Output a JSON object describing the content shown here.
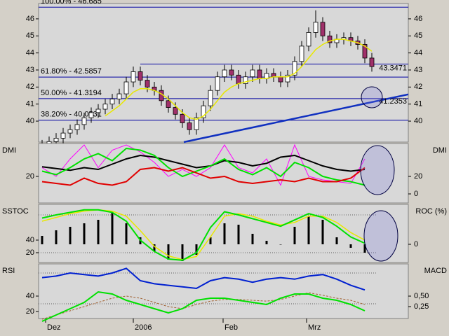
{
  "chart_data": [
    {
      "type": "candlestick",
      "x": [
        0,
        1,
        2,
        3,
        4,
        5,
        6,
        7,
        8,
        9,
        10,
        11,
        12,
        13,
        14,
        15,
        16,
        17,
        18,
        19,
        20,
        21,
        22,
        23,
        24,
        25,
        26,
        27,
        28,
        29,
        30,
        31,
        32,
        33,
        34,
        35,
        36,
        37,
        38,
        39,
        40,
        41,
        42,
        43,
        44,
        45,
        46,
        47
      ],
      "open": [
        38.4,
        38.6,
        38.8,
        39.0,
        39.3,
        39.5,
        39.8,
        40.2,
        40.5,
        40.7,
        41.0,
        41.3,
        41.6,
        42.3,
        42.9,
        42.4,
        42.0,
        41.8,
        41.2,
        40.8,
        40.4,
        39.9,
        39.5,
        40.2,
        40.9,
        41.8,
        42.6,
        43.0,
        42.7,
        42.2,
        42.6,
        43.0,
        42.5,
        42.8,
        42.6,
        42.3,
        42.7,
        43.5,
        44.4,
        45.2,
        45.8,
        45.0,
        44.6,
        44.8,
        44.9,
        44.7,
        44.5,
        43.7
      ],
      "high": [
        38.9,
        39.1,
        39.3,
        39.6,
        39.8,
        40.1,
        40.5,
        40.8,
        41.0,
        41.3,
        41.6,
        41.9,
        42.6,
        43.2,
        43.2,
        42.7,
        42.3,
        42.1,
        41.5,
        41.1,
        40.7,
        40.2,
        40.5,
        41.2,
        42.1,
        42.9,
        43.3,
        43.3,
        43.0,
        42.9,
        43.3,
        43.3,
        43.1,
        43.1,
        42.9,
        43.0,
        43.8,
        44.7,
        45.5,
        46.5,
        46.1,
        45.3,
        45.1,
        45.2,
        45.2,
        45.0,
        44.8,
        44.0
      ],
      "low": [
        38.1,
        38.3,
        38.5,
        38.7,
        39.0,
        39.2,
        39.5,
        39.9,
        40.2,
        40.4,
        40.7,
        41.0,
        41.3,
        42.0,
        42.1,
        41.7,
        41.5,
        40.9,
        40.5,
        40.1,
        39.6,
        39.2,
        39.2,
        39.9,
        40.6,
        41.5,
        42.3,
        42.4,
        41.9,
        41.9,
        42.3,
        42.2,
        42.2,
        42.3,
        42.0,
        42.0,
        42.4,
        43.2,
        44.1,
        44.9,
        44.7,
        44.3,
        44.3,
        44.5,
        44.4,
        44.2,
        43.4,
        42.9
      ],
      "close": [
        38.6,
        38.8,
        39.0,
        39.3,
        39.5,
        39.8,
        40.2,
        40.5,
        40.7,
        41.0,
        41.3,
        41.6,
        42.3,
        42.9,
        42.4,
        42.0,
        41.8,
        41.2,
        40.8,
        40.4,
        39.9,
        39.5,
        40.2,
        40.9,
        41.8,
        42.6,
        43.0,
        42.7,
        42.2,
        42.6,
        43.0,
        42.5,
        42.8,
        42.6,
        42.3,
        42.7,
        43.5,
        44.4,
        45.2,
        45.8,
        45.0,
        44.6,
        44.8,
        44.9,
        44.7,
        44.5,
        43.7,
        43.2
      ],
      "up_color": "#ffffff",
      "down_color": "#a0306a",
      "series": [
        {
          "color": "#e8e800",
          "values": [
            null,
            null,
            null,
            null,
            null,
            null,
            null,
            null,
            null,
            40.3,
            40.6,
            40.9,
            41.3,
            41.7,
            41.9,
            41.9,
            41.8,
            41.6,
            41.3,
            40.9,
            40.5,
            40.2,
            40.1,
            40.3,
            40.7,
            41.2,
            41.7,
            42.0,
            42.2,
            42.3,
            42.4,
            42.5,
            42.5,
            42.6,
            42.6,
            42.6,
            42.8,
            43.2,
            43.7,
            44.2,
            44.5,
            44.7,
            44.8,
            44.8,
            44.7,
            44.6,
            44.4,
            44.1
          ]
        }
      ],
      "levels": [
        {
          "value": 46.685,
          "label": "100.00% - 46.685",
          "anchor": "left"
        },
        {
          "value": 42.5857,
          "label": "61.80% - 42.5857",
          "anchor": "left"
        },
        {
          "value": 41.3194,
          "label": "50.00% - 41.3194",
          "anchor": "left"
        },
        {
          "value": 40.0531,
          "label": "38.20% - 40.0531",
          "anchor": "left"
        },
        {
          "value": 43.3471,
          "label": "43.3471",
          "anchor": "right"
        }
      ],
      "markers": [
        {
          "value": 41.2353,
          "label": "41.2353"
        }
      ],
      "trendline": {
        "x": [
          20.2,
          52.2
        ],
        "y": [
          38.77,
          41.57
        ],
        "color": "#1030c0"
      },
      "level_color": "#0000a0",
      "xlim": [
        -0.5,
        52.2
      ],
      "ylim": [
        38.77,
        46.9
      ],
      "yticks": [
        40,
        41,
        42,
        43,
        44,
        45,
        46
      ],
      "ticks_both_sides": true
    },
    {
      "type": "line",
      "title_left": "DMI",
      "title_right": "DMI",
      "x": [
        0,
        2,
        4,
        6,
        8,
        10,
        12,
        14,
        16,
        18,
        20,
        22,
        24,
        26,
        28,
        30,
        32,
        34,
        36,
        38,
        40,
        42,
        44,
        46
      ],
      "series": [
        {
          "color": "#ff00ff",
          "width": 1,
          "values": [
            30,
            20,
            40,
            56,
            30,
            50,
            56,
            48,
            36,
            20,
            28,
            20,
            30,
            56,
            30,
            24,
            40,
            10,
            56,
            20,
            16,
            14,
            12,
            40
          ]
        },
        {
          "color": "#000000",
          "width": 2,
          "values": [
            31,
            29,
            27,
            30,
            28,
            34,
            40,
            44,
            42,
            38,
            34,
            30,
            32,
            38,
            36,
            32,
            35,
            42,
            44,
            38,
            32,
            28,
            26,
            28
          ]
        },
        {
          "color": "#00e000",
          "width": 2,
          "values": [
            26,
            22,
            30,
            40,
            46,
            38,
            52,
            50,
            44,
            30,
            20,
            26,
            32,
            40,
            28,
            22,
            30,
            20,
            36,
            30,
            20,
            16,
            14,
            10
          ]
        },
        {
          "color": "#e00000",
          "width": 2,
          "values": [
            14,
            12,
            10,
            18,
            12,
            10,
            14,
            28,
            30,
            26,
            30,
            24,
            18,
            20,
            14,
            12,
            14,
            16,
            14,
            18,
            14,
            14,
            18,
            30
          ]
        }
      ],
      "xlim": [
        -0.5,
        52.2
      ],
      "ylim": [
        -10.4,
        57.6
      ],
      "yticks": [
        20
      ],
      "y2lim": [
        -10.4,
        57.6
      ],
      "y2ticks": [
        0,
        20
      ]
    },
    {
      "type": "line",
      "title_left": "SSTOC",
      "title_right": "ROC (%)",
      "x": [
        0,
        2,
        4,
        6,
        8,
        10,
        12,
        14,
        16,
        18,
        20,
        22,
        24,
        26,
        28,
        30,
        32,
        34,
        36,
        38,
        40,
        42,
        44,
        46
      ],
      "series": [
        {
          "color": "#000000",
          "style": "bar",
          "axis": "y2",
          "values": [
            0.12,
            0.2,
            0.25,
            0.3,
            0.35,
            0.45,
            0.3,
            0.1,
            -0.1,
            -0.22,
            -0.24,
            -0.15,
            0.1,
            0.3,
            0.28,
            0.15,
            0.05,
            0.0,
            0.25,
            0.4,
            0.35,
            0.1,
            -0.05,
            -0.12
          ]
        },
        {
          "color": "#e8e800",
          "width": 1.5,
          "values": [
            70,
            76,
            82,
            86,
            88,
            86,
            78,
            55,
            30,
            15,
            9,
            14,
            45,
            78,
            82,
            78,
            70,
            64,
            68,
            78,
            78,
            68,
            52,
            40
          ]
        },
        {
          "color": "#00e000",
          "width": 2,
          "values": [
            75,
            80,
            84,
            88,
            88,
            84,
            70,
            40,
            22,
            10,
            8,
            20,
            60,
            85,
            80,
            74,
            68,
            62,
            72,
            82,
            76,
            62,
            45,
            35
          ]
        }
      ],
      "levels": [
        20,
        80
      ],
      "xlim": [
        -0.5,
        52.2
      ],
      "ylim": [
        4.4,
        96.7
      ],
      "yticks": [
        20,
        40
      ],
      "y2lim": [
        -0.26,
        0.57
      ],
      "y2ticks": [
        0
      ]
    },
    {
      "type": "line",
      "title_left": "RSI",
      "title_right": "MACD",
      "x": [
        0,
        2,
        4,
        6,
        8,
        10,
        12,
        14,
        16,
        18,
        20,
        22,
        24,
        26,
        28,
        30,
        32,
        34,
        36,
        38,
        40,
        42,
        44,
        46
      ],
      "series": [
        {
          "color": "#a06030",
          "width": 1,
          "dash": true,
          "axis": "y2",
          "values": [
            -0.05,
            0.05,
            0.15,
            0.25,
            0.35,
            0.45,
            0.5,
            0.45,
            0.35,
            0.25,
            0.2,
            0.3,
            0.38,
            0.42,
            0.42,
            0.4,
            0.38,
            0.42,
            0.5,
            0.58,
            0.52,
            0.45,
            0.4,
            0.3
          ]
        },
        {
          "color": "#00e000",
          "width": 2,
          "axis": "y2",
          "values": [
            -0.1,
            0.05,
            0.2,
            0.35,
            0.6,
            0.55,
            0.4,
            0.3,
            0.2,
            0.1,
            0.2,
            0.4,
            0.45,
            0.45,
            0.4,
            0.35,
            0.3,
            0.45,
            0.55,
            0.55,
            0.45,
            0.4,
            0.3,
            0.15
          ]
        },
        {
          "color": "#0020d0",
          "width": 2,
          "values": [
            64,
            66,
            70,
            68,
            66,
            70,
            76,
            60,
            56,
            54,
            52,
            50,
            60,
            64,
            62,
            58,
            62,
            64,
            62,
            66,
            68,
            62,
            54,
            48
          ]
        }
      ],
      "levels": [
        30,
        70
      ],
      "xlim": [
        -0.5,
        52.2
      ],
      "ylim": [
        10.9,
        81.8
      ],
      "yticks": [
        20,
        40
      ],
      "y2lim": [
        -0.033,
        1.267
      ],
      "y2ticks": [
        {
          "value": 0.5,
          "label": "0,50"
        },
        {
          "value": 0.25,
          "label": "0,25"
        }
      ],
      "xticks": [
        {
          "value": 0.5,
          "label": "Dez"
        },
        {
          "value": 13,
          "label": "2006"
        },
        {
          "value": 25.8,
          "label": "Feb"
        },
        {
          "value": 37.7,
          "label": "Mrz"
        }
      ]
    }
  ]
}
